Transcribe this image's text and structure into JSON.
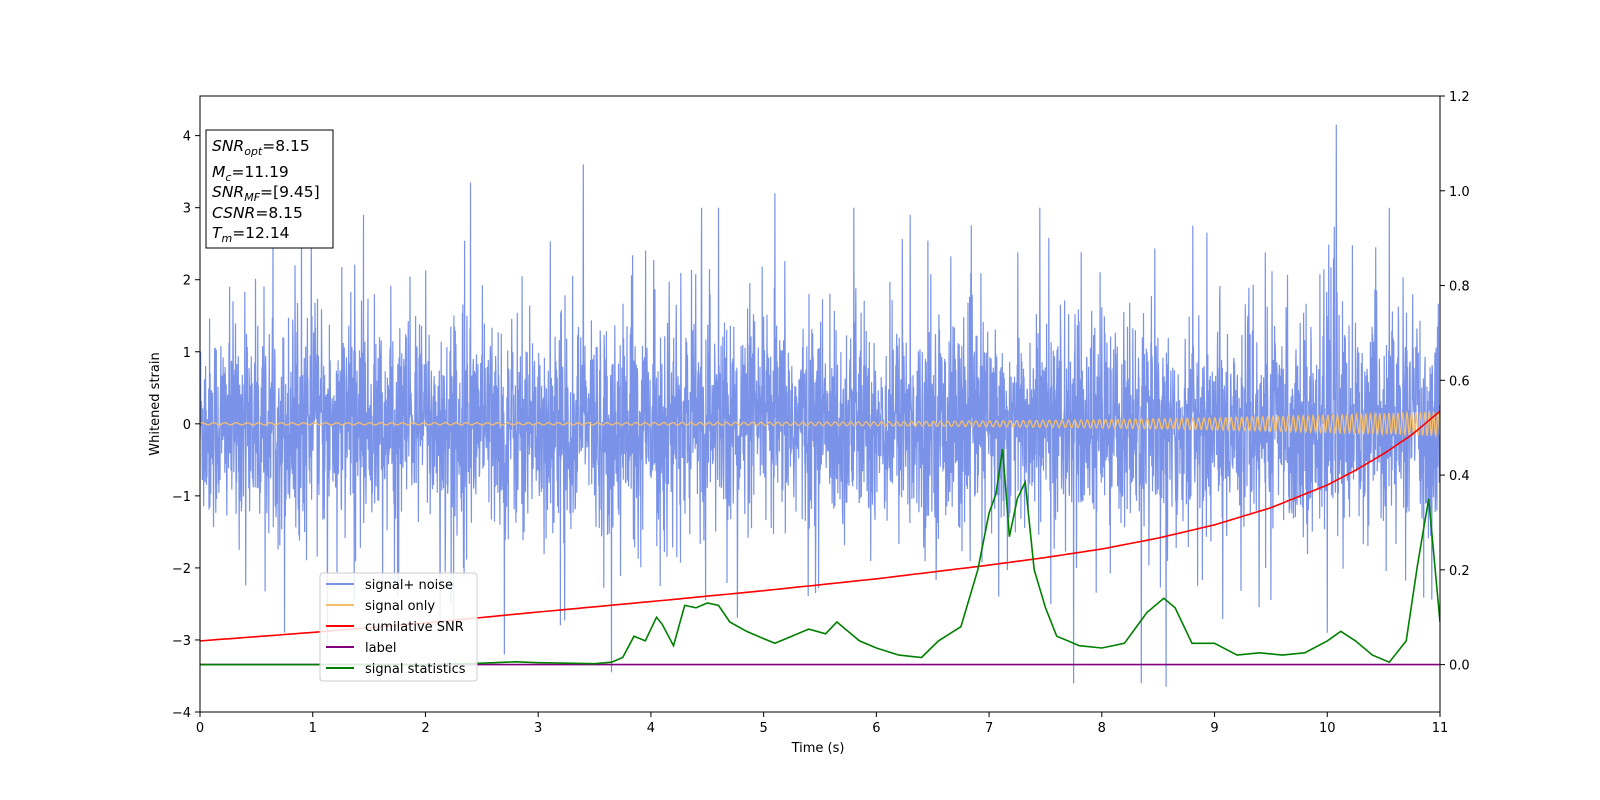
{
  "chart_data": {
    "type": "line",
    "xlabel": "Time (s)",
    "ylabel": "Whitened strain",
    "xlim": [
      0,
      11
    ],
    "ylim": [
      -4,
      4.55
    ],
    "y2lim": [
      -0.1,
      1.2
    ],
    "x_ticks": [
      "0",
      "1",
      "2",
      "3",
      "4",
      "5",
      "6",
      "7",
      "8",
      "9",
      "10",
      "11"
    ],
    "y_ticks": [
      "−4",
      "−3",
      "−2",
      "−1",
      "0",
      "1",
      "2",
      "3",
      "4"
    ],
    "y2_ticks": [
      "0.0",
      "0.2",
      "0.4",
      "0.6",
      "0.8",
      "1.0",
      "1.2"
    ],
    "grid": false,
    "legend_position": "lower-left",
    "annotation": {
      "snr_opt": {
        "base": "SNR",
        "sub": "opt",
        "value": "=8.15"
      },
      "mc": {
        "base": "M",
        "sub": "c",
        "value": "=11.19"
      },
      "snr_mf": {
        "base": "SNR",
        "sub": "MF",
        "value": "=[9.45]"
      },
      "csnr": {
        "base": "CSNR",
        "sub": "",
        "value": "=8.15"
      },
      "tm": {
        "base": "T",
        "sub": "m",
        "value": "=12.14"
      }
    },
    "series": [
      {
        "name": "signal+ noise",
        "axis": "left",
        "color": "#7a93e8",
        "kind": "noise",
        "spread": 1.3,
        "spikes": [
          [
            0.75,
            -2.9
          ],
          [
            0.9,
            2.8
          ],
          [
            1.13,
            -3.1
          ],
          [
            1.45,
            2.9
          ],
          [
            2.13,
            -2.9
          ],
          [
            2.4,
            3.35
          ],
          [
            2.7,
            -3.2
          ],
          [
            3.4,
            3.6
          ],
          [
            3.65,
            -3.45
          ],
          [
            4.45,
            -3.45
          ],
          [
            4.45,
            3.0
          ],
          [
            4.6,
            3.0
          ],
          [
            5.1,
            3.2
          ],
          [
            5.8,
            3.0
          ],
          [
            6.3,
            2.9
          ],
          [
            7.45,
            3.0
          ],
          [
            7.75,
            -3.6
          ],
          [
            8.35,
            -3.6
          ],
          [
            8.57,
            -3.65
          ],
          [
            10.0,
            -2.9
          ],
          [
            10.08,
            4.15
          ],
          [
            10.55,
            3.0
          ]
        ]
      },
      {
        "name": "signal only",
        "axis": "left",
        "color": "#f5be6e",
        "kind": "chirp",
        "amp_start": 0.015,
        "amp_end": 0.17,
        "freq_start": 10,
        "freq_end": 26
      },
      {
        "name": "cumilative SNR",
        "axis": "right",
        "color": "#ff0000",
        "x": [
          0,
          1,
          2,
          3,
          4,
          5,
          6,
          7,
          7.5,
          8,
          8.5,
          9,
          9.5,
          10,
          10.25,
          10.5,
          10.75,
          11
        ],
        "y": [
          0.05,
          0.068,
          0.088,
          0.111,
          0.133,
          0.156,
          0.181,
          0.21,
          0.226,
          0.244,
          0.267,
          0.295,
          0.331,
          0.379,
          0.41,
          0.445,
          0.485,
          0.535
        ]
      },
      {
        "name": "label",
        "axis": "right",
        "color": "#800080",
        "x": [
          0,
          11
        ],
        "y": [
          0,
          0
        ]
      },
      {
        "name": "signal statistics",
        "axis": "right",
        "color": "#008000",
        "x": [
          0,
          1,
          2,
          2.5,
          2.8,
          3.0,
          3.5,
          3.65,
          3.75,
          3.85,
          3.95,
          4.05,
          4.1,
          4.2,
          4.3,
          4.4,
          4.5,
          4.6,
          4.7,
          4.85,
          5.0,
          5.1,
          5.25,
          5.4,
          5.55,
          5.65,
          5.85,
          6.0,
          6.2,
          6.4,
          6.55,
          6.75,
          6.9,
          7.0,
          7.06,
          7.12,
          7.18,
          7.25,
          7.32,
          7.4,
          7.5,
          7.6,
          7.7,
          7.8,
          8.0,
          8.2,
          8.4,
          8.55,
          8.65,
          8.8,
          9.0,
          9.2,
          9.4,
          9.6,
          9.8,
          10.0,
          10.12,
          10.25,
          10.4,
          10.55,
          10.7,
          10.8,
          10.9,
          11.0
        ],
        "y": [
          0.0,
          0.0,
          0.0,
          0.003,
          0.006,
          0.004,
          0.002,
          0.005,
          0.015,
          0.06,
          0.05,
          0.1,
          0.085,
          0.04,
          0.125,
          0.12,
          0.13,
          0.125,
          0.09,
          0.07,
          0.055,
          0.045,
          0.06,
          0.075,
          0.065,
          0.09,
          0.05,
          0.035,
          0.02,
          0.015,
          0.05,
          0.08,
          0.2,
          0.32,
          0.36,
          0.455,
          0.27,
          0.35,
          0.385,
          0.2,
          0.12,
          0.06,
          0.05,
          0.04,
          0.035,
          0.045,
          0.11,
          0.14,
          0.12,
          0.045,
          0.045,
          0.02,
          0.025,
          0.02,
          0.025,
          0.05,
          0.07,
          0.05,
          0.02,
          0.005,
          0.05,
          0.21,
          0.35,
          0.09
        ]
      }
    ]
  }
}
